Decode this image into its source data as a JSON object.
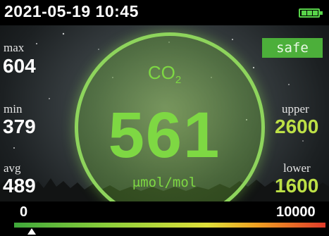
{
  "status_bar": {
    "datetime": "2021-05-19 10:45",
    "battery_icon": "battery-full-icon",
    "battery_level": 1.0
  },
  "status_badge": "safe",
  "stats": {
    "max": {
      "label": "max",
      "value": "604"
    },
    "min": {
      "label": "min",
      "value": "379"
    },
    "avg": {
      "label": "avg",
      "value": "489"
    },
    "upper": {
      "label": "upper",
      "value": "2600"
    },
    "lower": {
      "label": "lower",
      "value": "1600"
    }
  },
  "gauge": {
    "gas_label": "CO",
    "gas_subscript": "2",
    "reading": "561",
    "unit": "μmol/mol"
  },
  "scale": {
    "min": "0",
    "max": "10000",
    "marker_value": 561
  },
  "colors": {
    "accent_green": "#7ed843",
    "badge_green": "#4caf3a",
    "threshold_yellow": "#bde046"
  }
}
